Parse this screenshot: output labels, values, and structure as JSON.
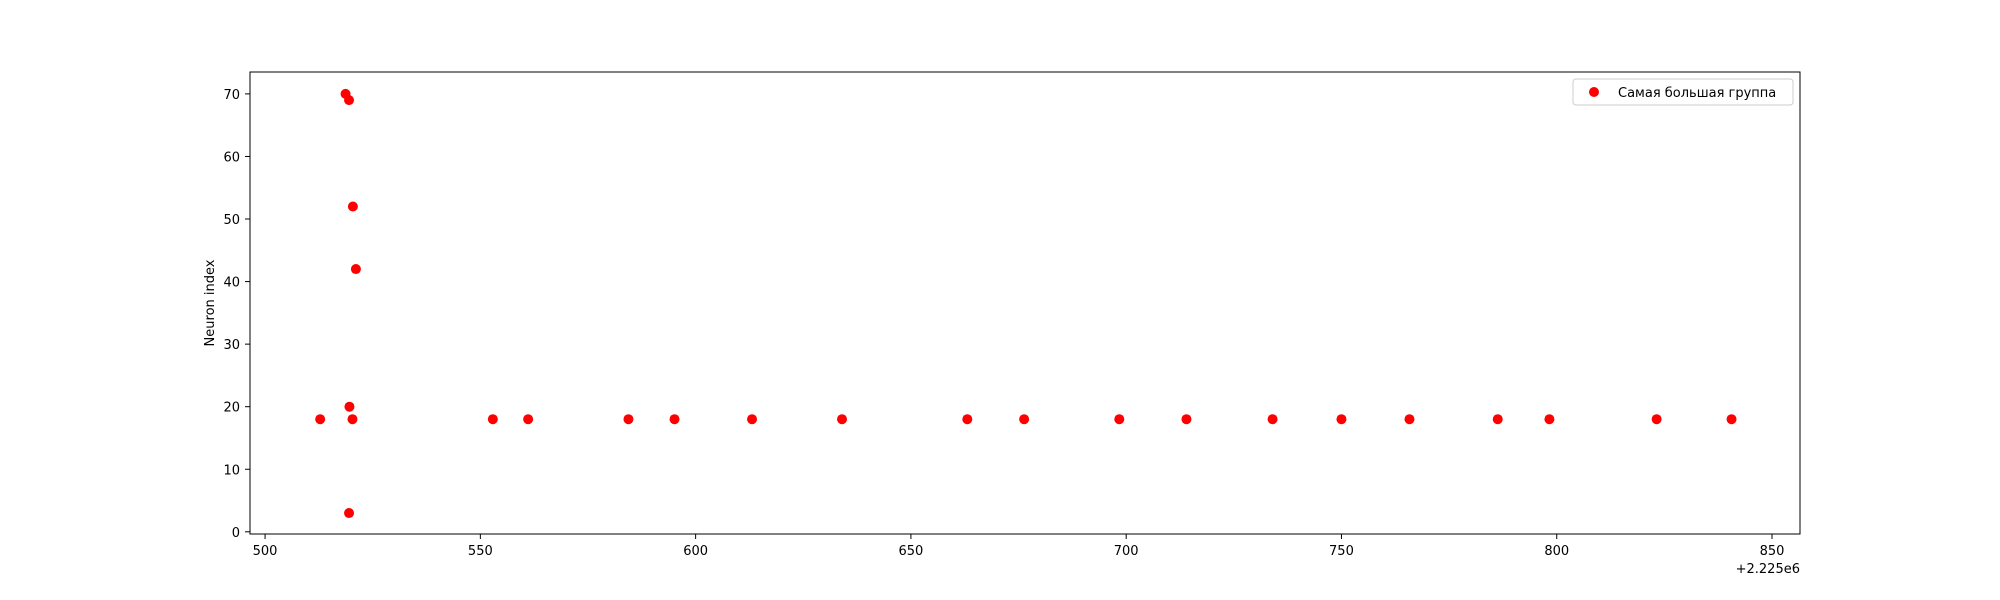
{
  "chart_data": {
    "type": "scatter",
    "title": "",
    "xlabel": "",
    "ylabel": "Neuron index",
    "x_offset_label": "+2.225e6",
    "xlim": [
      496.5,
      856.5
    ],
    "ylim": [
      -0.35,
      73.5
    ],
    "x_ticks": [
      500,
      550,
      600,
      650,
      700,
      750,
      800,
      850
    ],
    "y_ticks": [
      0,
      10,
      20,
      30,
      40,
      50,
      60,
      70
    ],
    "grid": false,
    "legend_position": "top-right",
    "series": [
      {
        "name": "Самая большая группа",
        "color": "#ff0000",
        "points": [
          {
            "x": 2225518.7,
            "y": 70
          },
          {
            "x": 2225519.5,
            "y": 69
          },
          {
            "x": 2225520.4,
            "y": 52
          },
          {
            "x": 2225521.1,
            "y": 42
          },
          {
            "x": 2225519.6,
            "y": 20
          },
          {
            "x": 2225512.8,
            "y": 18
          },
          {
            "x": 2225520.3,
            "y": 18
          },
          {
            "x": 2225519.5,
            "y": 3
          },
          {
            "x": 2225552.9,
            "y": 18
          },
          {
            "x": 2225561.1,
            "y": 18
          },
          {
            "x": 2225584.4,
            "y": 18
          },
          {
            "x": 2225595.1,
            "y": 18
          },
          {
            "x": 2225613.1,
            "y": 18
          },
          {
            "x": 2225634.0,
            "y": 18
          },
          {
            "x": 2225663.1,
            "y": 18
          },
          {
            "x": 2225676.3,
            "y": 18
          },
          {
            "x": 2225698.4,
            "y": 18
          },
          {
            "x": 2225714.0,
            "y": 18
          },
          {
            "x": 2225734.0,
            "y": 18
          },
          {
            "x": 2225750.0,
            "y": 18
          },
          {
            "x": 2225765.8,
            "y": 18
          },
          {
            "x": 2225786.3,
            "y": 18
          },
          {
            "x": 2225798.3,
            "y": 18
          },
          {
            "x": 2225823.2,
            "y": 18
          },
          {
            "x": 2225840.6,
            "y": 18
          }
        ]
      }
    ]
  }
}
